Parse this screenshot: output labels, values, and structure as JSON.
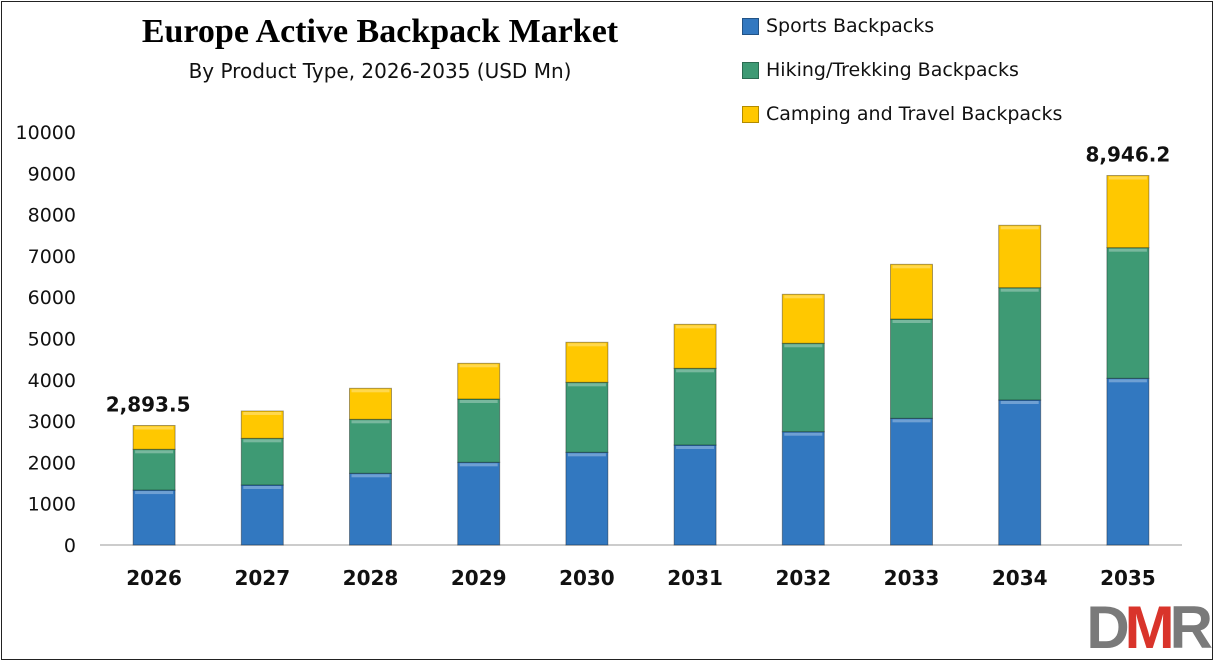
{
  "chart_data": {
    "type": "bar",
    "stacked": true,
    "title": "Europe Active Backpack Market",
    "subtitle": "By Product Type, 2026-2035 (USD Mn)",
    "categories": [
      "2026",
      "2027",
      "2028",
      "2029",
      "2030",
      "2031",
      "2032",
      "2033",
      "2034",
      "2035"
    ],
    "series": [
      {
        "name": "Sports Backpacks",
        "color": "#3278c0",
        "values": [
          1330,
          1453,
          1736,
          2002,
          2244,
          2421,
          2743,
          3067,
          3511,
          4036
        ]
      },
      {
        "name": "Hiking/Trekking Backpacks",
        "color": "#3e9a74",
        "values": [
          987,
          1130,
          1307,
          1533,
          1695,
          1857,
          2141,
          2405,
          2719,
          3163
        ]
      },
      {
        "name": "Camping and Travel Backpacks",
        "color": "#ffc800",
        "values": [
          576.5,
          662,
          751,
          864,
          969,
          1065,
          1186,
          1324,
          1511,
          1747.2
        ]
      }
    ],
    "annotations": [
      {
        "category": "2026",
        "label": "2,893.5"
      },
      {
        "category": "2035",
        "label": "8,946.2"
      }
    ],
    "ylim": [
      0,
      10000
    ],
    "yticks": [
      0,
      1000,
      2000,
      3000,
      4000,
      5000,
      6000,
      7000,
      8000,
      9000,
      10000
    ],
    "grid": false,
    "legend_position": "top-right",
    "xlabel": "",
    "ylabel": ""
  },
  "logo": {
    "text": "DMR",
    "colors": [
      "#7a7a7a",
      "#d9342b"
    ]
  }
}
